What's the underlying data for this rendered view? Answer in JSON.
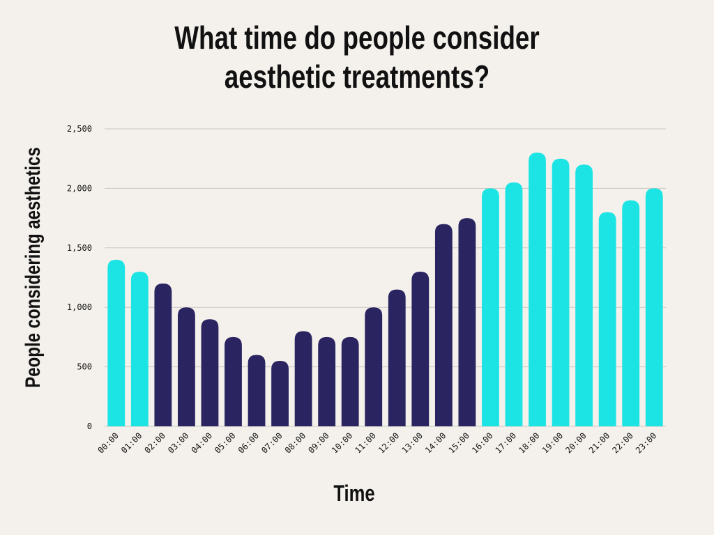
{
  "chart_data": {
    "type": "bar",
    "title_lines": [
      "What time do people consider",
      "aesthetic treatments?"
    ],
    "xlabel": "Time",
    "ylabel": "People considering aesthetics",
    "ylim": [
      0,
      2500
    ],
    "yticks": [
      0,
      500,
      1000,
      1500,
      2000,
      2500
    ],
    "ytick_labels": [
      "0",
      "500",
      "1,000",
      "1,500",
      "2,000",
      "2,500"
    ],
    "grid": true,
    "categories": [
      "00:00",
      "01:00",
      "02:00",
      "03:00",
      "04:00",
      "05:00",
      "06:00",
      "07:00",
      "08:00",
      "09:00",
      "10:00",
      "11:00",
      "12:00",
      "13:00",
      "14:00",
      "15:00",
      "16:00",
      "17:00",
      "18:00",
      "19:00",
      "20:00",
      "21:00",
      "22:00",
      "23:00"
    ],
    "values": [
      1400,
      1300,
      1200,
      1000,
      900,
      750,
      600,
      550,
      800,
      750,
      750,
      1000,
      1150,
      1300,
      1700,
      1750,
      2000,
      2050,
      2300,
      2250,
      2200,
      1800,
      1900,
      2000
    ],
    "bar_groups": [
      "peak",
      "peak",
      "low",
      "low",
      "low",
      "low",
      "low",
      "low",
      "low",
      "low",
      "low",
      "low",
      "low",
      "low",
      "low",
      "low",
      "peak",
      "peak",
      "peak",
      "peak",
      "peak",
      "peak",
      "peak",
      "peak"
    ],
    "colors": {
      "peak": "#1de4e4",
      "low": "#2a2460",
      "grid": "#c9c6c1"
    }
  }
}
